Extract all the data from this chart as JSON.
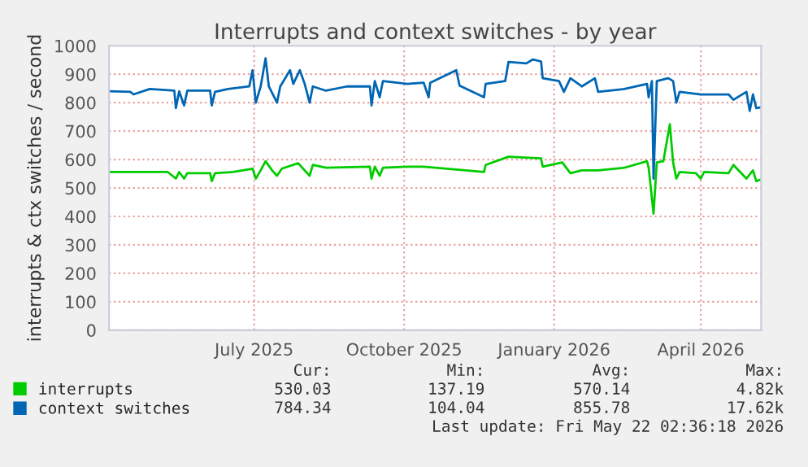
{
  "chart_data": {
    "type": "line",
    "title": "Interrupts and context switches - by year",
    "ylabel": "interrupts & ctx switches / second",
    "xlim": [
      "2025-04-17",
      "2026-05-22"
    ],
    "xticks": [
      {
        "value": "2025-07-15",
        "label": "July 2025"
      },
      {
        "value": "2025-10-15",
        "label": "October 2025"
      },
      {
        "value": "2026-01-15",
        "label": "January 2026"
      },
      {
        "value": "2026-04-15",
        "label": "April 2026"
      }
    ],
    "ylim": [
      0,
      1000
    ],
    "yticks": [
      0,
      100,
      200,
      300,
      400,
      500,
      600,
      700,
      800,
      900,
      1000
    ],
    "grid": true,
    "legend": "bottom",
    "marker": "none",
    "line_style": "solid",
    "series": [
      {
        "name": "interrupts",
        "color": "#00cc00",
        "x": [
          "2025-04-17",
          "2025-05-23",
          "2025-05-28",
          "2025-05-30",
          "2025-06-02",
          "2025-06-04",
          "2025-06-18",
          "2025-06-19",
          "2025-06-21",
          "2025-07-02",
          "2025-07-14",
          "2025-07-16",
          "2025-07-19",
          "2025-07-22",
          "2025-07-26",
          "2025-07-29",
          "2025-08-01",
          "2025-08-11",
          "2025-08-18",
          "2025-08-20",
          "2025-08-28",
          "2025-09-24",
          "2025-09-25",
          "2025-09-27",
          "2025-09-30",
          "2025-10-02",
          "2025-10-17",
          "2025-10-27",
          "2025-12-03",
          "2025-12-04",
          "2025-12-18",
          "2026-01-07",
          "2026-01-08",
          "2026-01-20",
          "2026-01-25",
          "2026-02-01",
          "2026-02-11",
          "2026-02-27",
          "2026-03-13",
          "2026-03-14",
          "2026-03-17",
          "2026-03-19",
          "2026-03-23",
          "2026-03-27",
          "2026-03-29",
          "2026-03-31",
          "2026-04-02",
          "2026-04-12",
          "2026-04-15",
          "2026-04-17",
          "2026-05-02",
          "2026-05-05",
          "2026-05-13",
          "2026-05-17",
          "2026-05-19",
          "2026-05-22"
        ],
        "values": [
          556,
          556,
          533,
          556,
          533,
          552,
          552,
          524,
          552,
          556,
          568,
          533,
          562,
          594,
          562,
          543,
          568,
          587,
          543,
          581,
          571,
          575,
          533,
          575,
          543,
          571,
          575,
          575,
          556,
          581,
          610,
          604,
          575,
          590,
          552,
          562,
          562,
          571,
          594,
          571,
          410,
          590,
          594,
          724,
          590,
          533,
          556,
          552,
          533,
          556,
          552,
          581,
          533,
          562,
          524,
          530
        ]
      },
      {
        "name": "context switches",
        "color": "#0066b3",
        "x": [
          "2025-04-17",
          "2025-04-30",
          "2025-05-02",
          "2025-05-12",
          "2025-05-27",
          "2025-05-28",
          "2025-05-30",
          "2025-06-02",
          "2025-06-04",
          "2025-06-18",
          "2025-06-19",
          "2025-06-21",
          "2025-06-29",
          "2025-07-12",
          "2025-07-14",
          "2025-07-16",
          "2025-07-19",
          "2025-07-22",
          "2025-07-24",
          "2025-07-29",
          "2025-07-31",
          "2025-08-06",
          "2025-08-08",
          "2025-08-12",
          "2025-08-15",
          "2025-08-18",
          "2025-08-20",
          "2025-08-28",
          "2025-09-10",
          "2025-09-24",
          "2025-09-25",
          "2025-09-27",
          "2025-09-30",
          "2025-10-02",
          "2025-10-17",
          "2025-10-27",
          "2025-10-30",
          "2025-10-31",
          "2025-11-16",
          "2025-11-18",
          "2025-12-03",
          "2025-12-04",
          "2025-12-16",
          "2025-12-18",
          "2025-12-29",
          "2026-01-02",
          "2026-01-07",
          "2026-01-08",
          "2026-01-18",
          "2026-01-21",
          "2026-01-25",
          "2026-02-01",
          "2026-02-09",
          "2026-02-11",
          "2026-02-27",
          "2026-03-13",
          "2026-03-14",
          "2026-03-16",
          "2026-03-17",
          "2026-03-19",
          "2026-03-26",
          "2026-03-29",
          "2026-03-31",
          "2026-04-02",
          "2026-04-15",
          "2026-05-02",
          "2026-05-05",
          "2026-05-13",
          "2026-05-15",
          "2026-05-17",
          "2026-05-19",
          "2026-05-22"
        ],
        "values": [
          840,
          838,
          829,
          848,
          842,
          781,
          840,
          790,
          842,
          842,
          790,
          838,
          848,
          857,
          914,
          800,
          857,
          956,
          857,
          800,
          857,
          914,
          866,
          914,
          866,
          800,
          857,
          842,
          857,
          857,
          790,
          876,
          819,
          876,
          866,
          870,
          819,
          870,
          914,
          860,
          819,
          866,
          876,
          943,
          938,
          952,
          945,
          886,
          876,
          838,
          886,
          857,
          886,
          838,
          848,
          866,
          819,
          876,
          533,
          876,
          886,
          876,
          800,
          838,
          829,
          829,
          810,
          838,
          771,
          829,
          781,
          784
        ]
      }
    ],
    "annotations": [
      "Cur:",
      "Min:",
      "Avg:",
      "Max:",
      "530.03",
      "137.19",
      "570.14",
      "4.82k",
      "784.34",
      "104.04",
      "855.78",
      "17.62k",
      "Last update: Fri May 22 02:36:18 2026"
    ]
  }
}
